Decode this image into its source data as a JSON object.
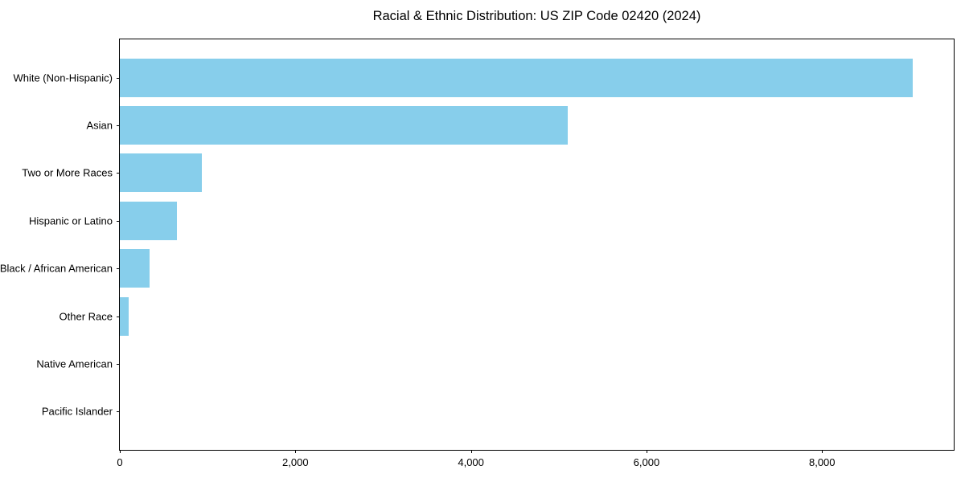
{
  "title": "Racial & Ethnic Distribution: US ZIP Code 02420 (2024)",
  "colors": {
    "bar": "#87CEEB",
    "axis": "#000000",
    "text": "#000000",
    "background": "#ffffff"
  },
  "chart_data": {
    "type": "bar",
    "orientation": "horizontal",
    "title": "Racial & Ethnic Distribution: US ZIP Code 02420 (2024)",
    "categories": [
      "White (Non-Hispanic)",
      "Asian",
      "Two or More Races",
      "Hispanic or Latino",
      "Black / African American",
      "Other Race",
      "Native American",
      "Pacific Islander"
    ],
    "values": [
      9030,
      5100,
      930,
      650,
      335,
      100,
      0,
      0
    ],
    "bar_color": "#87CEEB",
    "xlabel": "",
    "ylabel": "",
    "xlim": [
      0,
      9500
    ],
    "x_ticks": [
      0,
      2000,
      4000,
      6000,
      8000
    ],
    "x_tick_labels": [
      "0",
      "2,000",
      "4,000",
      "6,000",
      "8,000"
    ],
    "grid": false,
    "legend": null
  }
}
